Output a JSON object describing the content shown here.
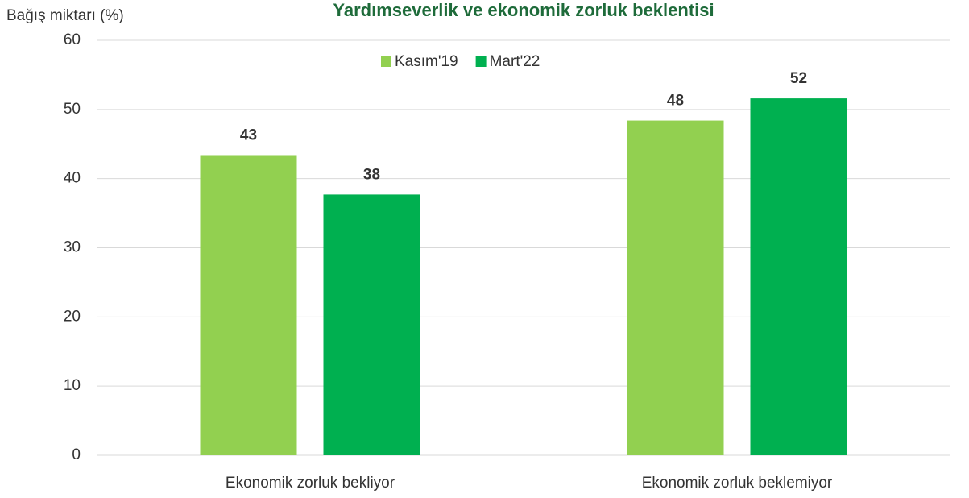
{
  "chart_data": {
    "type": "bar",
    "title": "Yardımseverlik ve ekonomik zorluk beklentisi",
    "y_label": "Bağış miktarı (%)",
    "categories": [
      "Ekonomik zorluk bekliyor",
      "Ekonomik zorluk beklemiyor"
    ],
    "series": [
      {
        "name": "Kasım'19",
        "color": "#92d050",
        "values": [
          43.4,
          48.4
        ],
        "value_labels": [
          "43",
          "48"
        ]
      },
      {
        "name": "Mart'22",
        "color": "#00b050",
        "values": [
          37.7,
          51.6
        ],
        "value_labels": [
          "38",
          "52"
        ]
      }
    ],
    "ylim": [
      0,
      60
    ],
    "yticks": [
      0,
      10,
      20,
      30,
      40,
      50,
      60
    ],
    "grid": true,
    "legend": "top"
  }
}
